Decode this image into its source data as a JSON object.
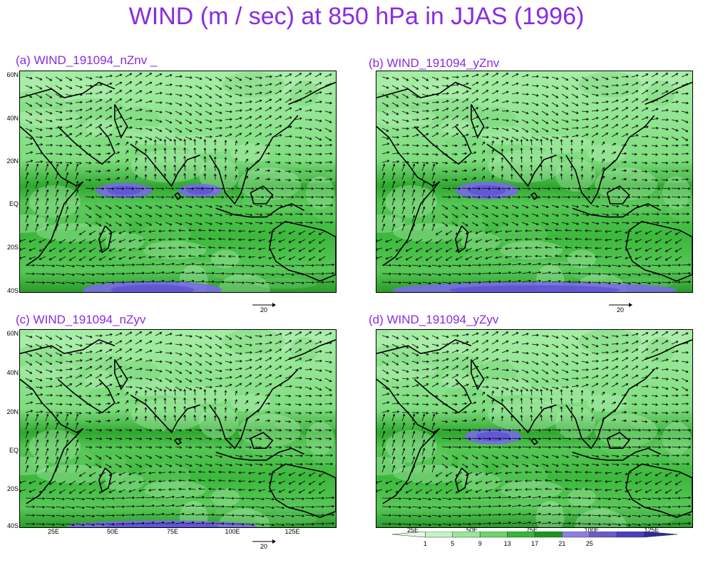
{
  "title": "WIND (m / sec) at 850 hPa in JJAS (1996)",
  "panels": [
    {
      "label": "(a)  WIND_191094_nZnv _"
    },
    {
      "label": "(b)  WIND_191094_yZnv"
    },
    {
      "label": "(c)  WIND_191094_nZyv"
    },
    {
      "label": "(d)  WIND_191094_yZyv"
    }
  ],
  "lat_labels": [
    "60N",
    "40N",
    "20N",
    "EQ",
    "20S",
    "40S"
  ],
  "lon_labels": [
    "25E",
    "50E",
    "75E",
    "100E",
    "125E"
  ],
  "ref_vector_label": "20",
  "colorbar": {
    "levels": [
      "1",
      "5",
      "9",
      "13",
      "17",
      "21",
      "25"
    ],
    "colors": [
      "#e8fbe8",
      "#c4f2c4",
      "#99e699",
      "#6bd66b",
      "#33b833",
      "#1a961a",
      "#8c7fe6",
      "#6a5acd",
      "#4b3fbf",
      "#2a2a9f"
    ]
  },
  "colors": {
    "title": "#8a2be2",
    "map_base": "#8fe88f",
    "map_dark": "#1ea81e",
    "jet": "#7b68ee"
  }
}
